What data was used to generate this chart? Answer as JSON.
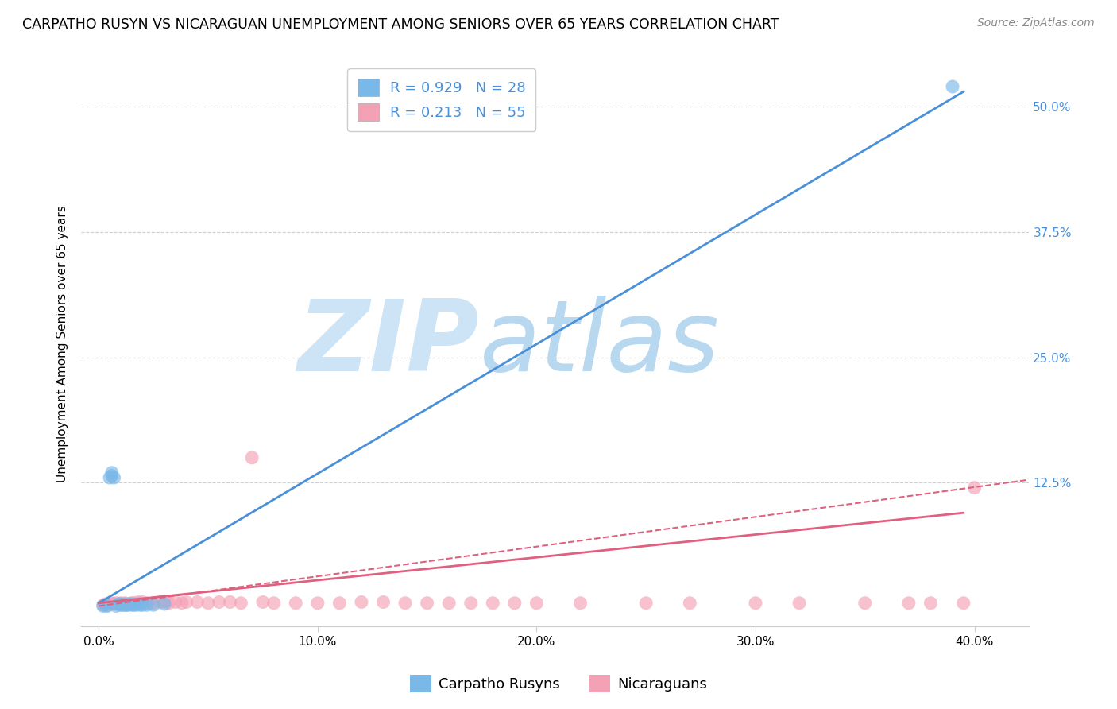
{
  "title": "CARPATHO RUSYN VS NICARAGUAN UNEMPLOYMENT AMONG SENIORS OVER 65 YEARS CORRELATION CHART",
  "source": "Source: ZipAtlas.com",
  "ylabel": "Unemployment Among Seniors over 65 years",
  "xlabel_ticks": [
    "0.0%",
    "10.0%",
    "20.0%",
    "30.0%",
    "40.0%"
  ],
  "xlabel_vals": [
    0.0,
    0.1,
    0.2,
    0.3,
    0.4
  ],
  "ylabel_ticks": [
    "12.5%",
    "25.0%",
    "37.5%",
    "50.0%"
  ],
  "ylabel_vals": [
    0.125,
    0.25,
    0.375,
    0.5
  ],
  "xlim": [
    -0.008,
    0.425
  ],
  "ylim": [
    -0.018,
    0.545
  ],
  "blue_R": 0.929,
  "blue_N": 28,
  "pink_R": 0.213,
  "pink_N": 55,
  "blue_color": "#7ab8e8",
  "pink_color": "#f4a0b5",
  "blue_line_color": "#4a90d9",
  "pink_line_color": "#e06080",
  "watermark_ZIP_color": "#cce4f5",
  "watermark_atlas_color": "#b8d8f0",
  "legend_label_blue": "Carpatho Rusyns",
  "legend_label_pink": "Nicaraguans",
  "title_fontsize": 12.5,
  "source_fontsize": 10,
  "axis_label_fontsize": 11,
  "tick_fontsize": 11,
  "legend_fontsize": 13,
  "blue_scatter_x": [
    0.002,
    0.003,
    0.004,
    0.005,
    0.006,
    0.006,
    0.007,
    0.008,
    0.009,
    0.01,
    0.01,
    0.011,
    0.012,
    0.012,
    0.013,
    0.013,
    0.014,
    0.015,
    0.015,
    0.016,
    0.017,
    0.018,
    0.019,
    0.02,
    0.022,
    0.025,
    0.03,
    0.39
  ],
  "blue_scatter_y": [
    0.002,
    0.003,
    0.002,
    0.13,
    0.132,
    0.135,
    0.13,
    0.002,
    0.004,
    0.003,
    0.004,
    0.003,
    0.003,
    0.004,
    0.003,
    0.003,
    0.004,
    0.003,
    0.004,
    0.003,
    0.003,
    0.004,
    0.003,
    0.003,
    0.003,
    0.003,
    0.004,
    0.52
  ],
  "pink_scatter_x": [
    0.002,
    0.003,
    0.004,
    0.005,
    0.006,
    0.007,
    0.008,
    0.009,
    0.01,
    0.011,
    0.012,
    0.013,
    0.014,
    0.015,
    0.016,
    0.018,
    0.02,
    0.022,
    0.025,
    0.028,
    0.03,
    0.032,
    0.035,
    0.038,
    0.04,
    0.045,
    0.05,
    0.055,
    0.06,
    0.065,
    0.07,
    0.075,
    0.08,
    0.09,
    0.1,
    0.11,
    0.12,
    0.13,
    0.14,
    0.15,
    0.16,
    0.17,
    0.18,
    0.19,
    0.2,
    0.22,
    0.25,
    0.27,
    0.3,
    0.32,
    0.35,
    0.37,
    0.38,
    0.395,
    0.4
  ],
  "pink_scatter_y": [
    0.003,
    0.004,
    0.003,
    0.004,
    0.005,
    0.004,
    0.005,
    0.004,
    0.005,
    0.004,
    0.005,
    0.004,
    0.004,
    0.005,
    0.005,
    0.006,
    0.006,
    0.005,
    0.005,
    0.006,
    0.006,
    0.005,
    0.006,
    0.005,
    0.006,
    0.006,
    0.005,
    0.006,
    0.006,
    0.005,
    0.15,
    0.006,
    0.005,
    0.005,
    0.005,
    0.005,
    0.006,
    0.006,
    0.005,
    0.005,
    0.005,
    0.005,
    0.005,
    0.005,
    0.005,
    0.005,
    0.005,
    0.005,
    0.005,
    0.005,
    0.005,
    0.005,
    0.005,
    0.005,
    0.12
  ],
  "blue_line_x": [
    0.0,
    0.395
  ],
  "blue_line_y": [
    0.005,
    0.515
  ],
  "pink_solid_line_x": [
    0.0,
    0.395
  ],
  "pink_solid_line_y": [
    0.005,
    0.095
  ],
  "pink_dash_line_x": [
    0.0,
    0.425
  ],
  "pink_dash_line_y": [
    0.002,
    0.128
  ]
}
